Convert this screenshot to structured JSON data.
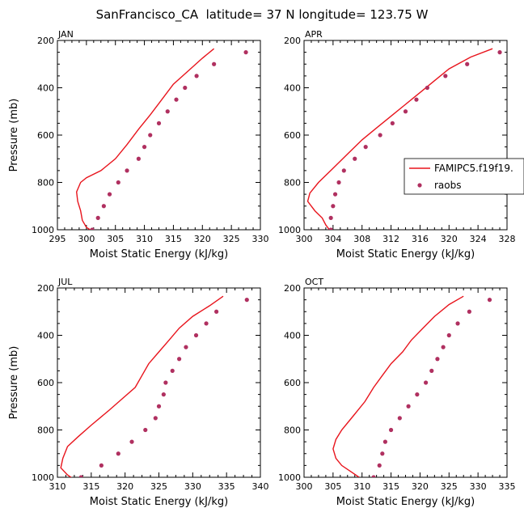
{
  "figure_title": "SanFrancisco_CA  latitude= 37 N longitude= 123.75 W",
  "legend": {
    "entries": [
      {
        "label": "FAMIPC5.f19f19.",
        "kind": "line",
        "color": "#e8141c"
      },
      {
        "label": "raobs",
        "kind": "marker",
        "color": "#b03060"
      }
    ]
  },
  "chart_data": [
    {
      "type": "line",
      "title": "JAN",
      "xlabel": "Moist Static Energy (kJ/kg)",
      "ylabel": "Pressure (mb)",
      "xlim": [
        295,
        330
      ],
      "ylim": [
        1000,
        200
      ],
      "xticks": [
        295,
        300,
        305,
        310,
        315,
        320,
        325,
        330
      ],
      "yticks": [
        200,
        400,
        600,
        800,
        1000
      ],
      "series": [
        {
          "kind": "line",
          "color": "#e8141c",
          "points": [
            [
              322,
              235
            ],
            [
              320,
              275
            ],
            [
              317.5,
              330
            ],
            [
              315,
              385
            ],
            [
              313,
              450
            ],
            [
              311,
              515
            ],
            [
              309,
              575
            ],
            [
              307,
              640
            ],
            [
              305,
              700
            ],
            [
              302.5,
              750
            ],
            [
              300,
              780
            ],
            [
              299,
              800
            ],
            [
              298.3,
              840
            ],
            [
              298.5,
              880
            ],
            [
              299,
              920
            ],
            [
              299.3,
              960
            ],
            [
              300,
              990
            ],
            [
              301,
              1005
            ]
          ]
        },
        {
          "kind": "markers",
          "color": "#b03060",
          "points": [
            [
              327.5,
              250
            ],
            [
              322,
              300
            ],
            [
              319,
              350
            ],
            [
              317,
              400
            ],
            [
              315.5,
              450
            ],
            [
              314,
              500
            ],
            [
              312.5,
              550
            ],
            [
              311,
              600
            ],
            [
              310,
              650
            ],
            [
              309,
              700
            ],
            [
              307,
              750
            ],
            [
              305.5,
              800
            ],
            [
              304,
              850
            ],
            [
              303,
              900
            ],
            [
              302,
              950
            ],
            [
              301,
              1000
            ]
          ]
        }
      ]
    },
    {
      "type": "line",
      "title": "APR",
      "xlabel": "Moist Static Energy (kJ/kg)",
      "ylabel": "",
      "xlim": [
        300,
        328
      ],
      "ylim": [
        1000,
        200
      ],
      "xticks": [
        300,
        304,
        308,
        312,
        316,
        320,
        324,
        328
      ],
      "yticks": [
        200,
        400,
        600,
        800,
        1000
      ],
      "series": [
        {
          "kind": "line",
          "color": "#e8141c",
          "points": [
            [
              326,
              235
            ],
            [
              323,
              270
            ],
            [
              320,
              320
            ],
            [
              318,
              370
            ],
            [
              316,
              420
            ],
            [
              314,
              470
            ],
            [
              312,
              520
            ],
            [
              310,
              570
            ],
            [
              308,
              620
            ],
            [
              306,
              680
            ],
            [
              304,
              740
            ],
            [
              302,
              800
            ],
            [
              300.8,
              845
            ],
            [
              300.5,
              880
            ],
            [
              301.5,
              920
            ],
            [
              302.5,
              950
            ],
            [
              303,
              980
            ],
            [
              303.5,
              1000
            ]
          ]
        },
        {
          "kind": "markers",
          "color": "#b03060",
          "points": [
            [
              327,
              250
            ],
            [
              322.5,
              300
            ],
            [
              319.5,
              350
            ],
            [
              317,
              400
            ],
            [
              315.5,
              450
            ],
            [
              314,
              500
            ],
            [
              312.2,
              550
            ],
            [
              310.5,
              600
            ],
            [
              308.5,
              650
            ],
            [
              307,
              700
            ],
            [
              305.5,
              750
            ],
            [
              304.8,
              800
            ],
            [
              304.3,
              850
            ],
            [
              304,
              900
            ],
            [
              303.7,
              950
            ],
            [
              303.7,
              1000
            ]
          ]
        }
      ]
    },
    {
      "type": "line",
      "title": "JUL",
      "xlabel": "Moist Static Energy (kJ/kg)",
      "ylabel": "Pressure (mb)",
      "xlim": [
        310,
        340
      ],
      "ylim": [
        1000,
        200
      ],
      "xticks": [
        310,
        315,
        320,
        325,
        330,
        335,
        340
      ],
      "yticks": [
        200,
        400,
        600,
        800,
        1000
      ],
      "series": [
        {
          "kind": "line",
          "color": "#e8141c",
          "points": [
            [
              334.5,
              235
            ],
            [
              332.5,
              275
            ],
            [
              330,
              320
            ],
            [
              328,
              370
            ],
            [
              326.5,
              420
            ],
            [
              325,
              470
            ],
            [
              323.5,
              520
            ],
            [
              322.5,
              570
            ],
            [
              321.5,
              620
            ],
            [
              319.5,
              670
            ],
            [
              317.5,
              720
            ],
            [
              315,
              780
            ],
            [
              313,
              830
            ],
            [
              311.5,
              870
            ],
            [
              310.8,
              920
            ],
            [
              310.5,
              960
            ],
            [
              311.5,
              990
            ],
            [
              312.5,
              1010
            ]
          ]
        },
        {
          "kind": "markers",
          "color": "#b03060",
          "points": [
            [
              338,
              250
            ],
            [
              333.5,
              300
            ],
            [
              332,
              350
            ],
            [
              330.5,
              400
            ],
            [
              329,
              450
            ],
            [
              328,
              500
            ],
            [
              327,
              550
            ],
            [
              326,
              600
            ],
            [
              325.7,
              650
            ],
            [
              325,
              700
            ],
            [
              324.5,
              750
            ],
            [
              323,
              800
            ],
            [
              321,
              850
            ],
            [
              319,
              900
            ],
            [
              316.5,
              950
            ],
            [
              313.5,
              1000
            ]
          ]
        }
      ]
    },
    {
      "type": "line",
      "title": "OCT",
      "xlabel": "Moist Static Energy (kJ/kg)",
      "ylabel": "",
      "xlim": [
        300,
        335
      ],
      "ylim": [
        1000,
        200
      ],
      "xticks": [
        300,
        305,
        310,
        315,
        320,
        325,
        330,
        335
      ],
      "yticks": [
        200,
        400,
        600,
        800,
        1000
      ],
      "series": [
        {
          "kind": "line",
          "color": "#e8141c",
          "points": [
            [
              327.5,
              235
            ],
            [
              325,
              270
            ],
            [
              322.5,
              320
            ],
            [
              320.5,
              370
            ],
            [
              318.5,
              420
            ],
            [
              317,
              470
            ],
            [
              315,
              520
            ],
            [
              313.5,
              570
            ],
            [
              312,
              620
            ],
            [
              310.5,
              680
            ],
            [
              308.5,
              740
            ],
            [
              306.5,
              800
            ],
            [
              305.5,
              840
            ],
            [
              305,
              880
            ],
            [
              305.5,
              920
            ],
            [
              306.5,
              950
            ],
            [
              308,
              975
            ],
            [
              309.5,
              1000
            ]
          ]
        },
        {
          "kind": "markers",
          "color": "#b03060",
          "points": [
            [
              332,
              250
            ],
            [
              328.5,
              300
            ],
            [
              326.5,
              350
            ],
            [
              325,
              400
            ],
            [
              324,
              450
            ],
            [
              323,
              500
            ],
            [
              322,
              550
            ],
            [
              321,
              600
            ],
            [
              319.5,
              650
            ],
            [
              318,
              700
            ],
            [
              316.5,
              750
            ],
            [
              315,
              800
            ],
            [
              314,
              850
            ],
            [
              313.5,
              900
            ],
            [
              313,
              950
            ],
            [
              312,
              1000
            ]
          ]
        }
      ]
    }
  ]
}
